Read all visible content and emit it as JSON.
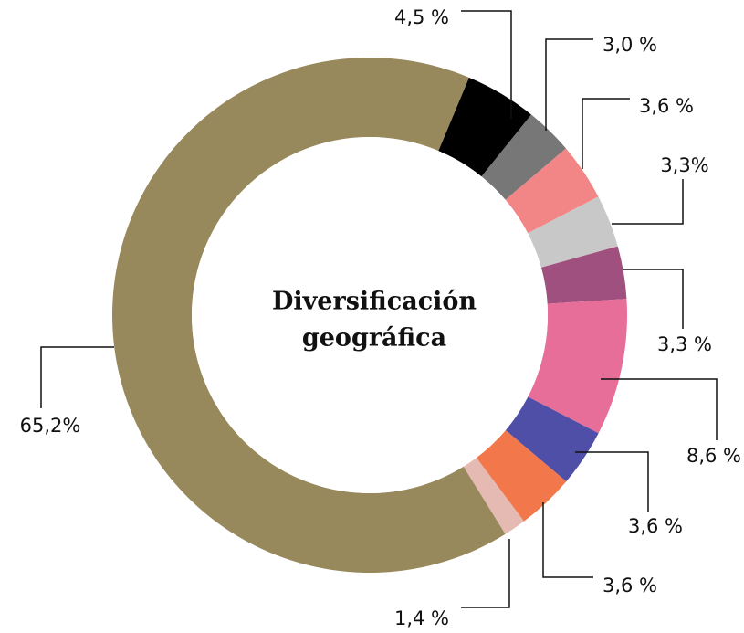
{
  "chart_data": {
    "type": "donut",
    "title": "Diversificación geográfica",
    "values": [
      4.5,
      3.0,
      3.6,
      3.3,
      3.3,
      8.6,
      3.6,
      3.6,
      1.4,
      65.2
    ],
    "value_labels": [
      "4,5 %",
      "3,0 %",
      "3,6 %",
      "3,3%",
      "3,3 %",
      "8,6 %",
      "3,6 %",
      "3,6 %",
      "1,4 %",
      "65,2%"
    ],
    "colors": [
      "#000000",
      "#777777",
      "#f28686",
      "#c8c8c8",
      "#a0507e",
      "#e86e9a",
      "#4f4fa8",
      "#f2784b",
      "#e4bab3",
      "#98895d"
    ]
  }
}
